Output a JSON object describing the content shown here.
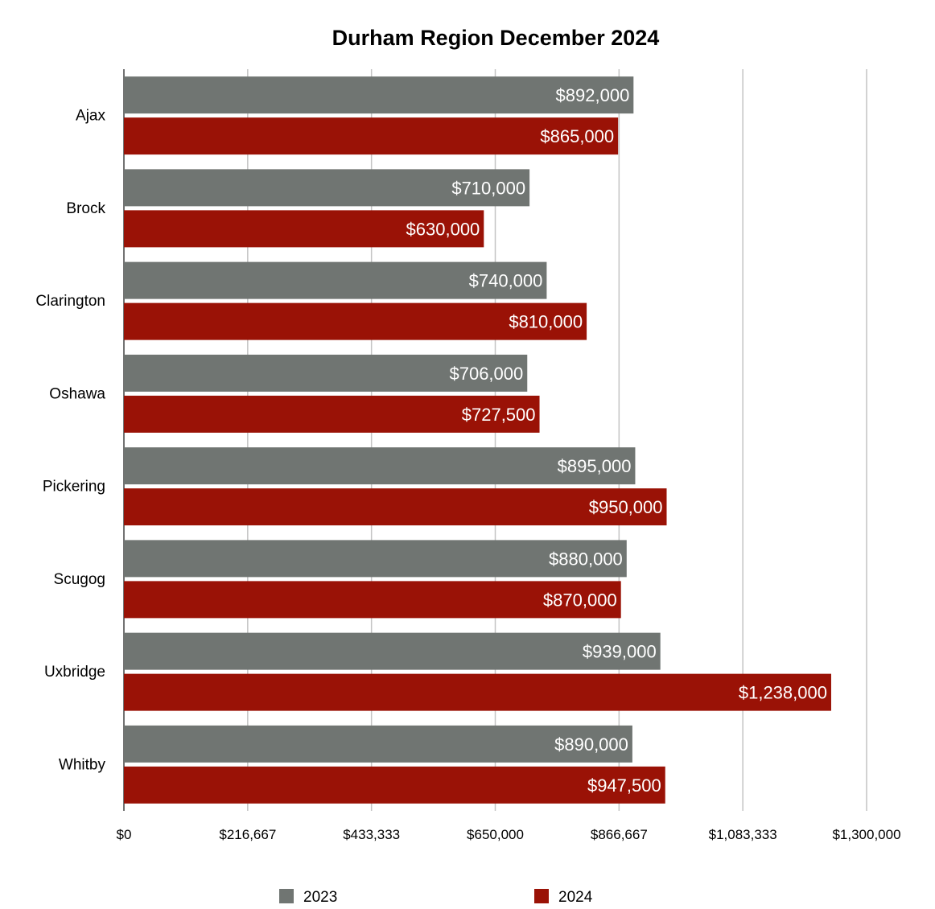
{
  "chart_data": {
    "type": "bar",
    "orientation": "horizontal",
    "title": "Durham Region December 2024",
    "xlabel": "",
    "ylabel": "",
    "categories": [
      "Ajax",
      "Brock",
      "Clarington",
      "Oshawa",
      "Pickering",
      "Scugog",
      "Uxbridge",
      "Whitby"
    ],
    "series": [
      {
        "name": "2023",
        "color": "#707572",
        "values": [
          892000,
          710000,
          740000,
          706000,
          895000,
          880000,
          939000,
          890000
        ],
        "labels": [
          "$892,000",
          "$710,000",
          "$740,000",
          "$706,000",
          "$895,000",
          "$880,000",
          "$939,000",
          "$890,000"
        ]
      },
      {
        "name": "2024",
        "color": "#9a1206",
        "values": [
          865000,
          630000,
          810000,
          727500,
          950000,
          870000,
          1238000,
          947500
        ],
        "labels": [
          "$865,000",
          "$630,000",
          "$810,000",
          "$727,500",
          "$950,000",
          "$870,000",
          "$1,238,000",
          "$947,500"
        ]
      }
    ],
    "xlim": [
      0,
      1300000
    ],
    "ticks": [
      0,
      216667,
      433333,
      650000,
      866667,
      1083333,
      1300000
    ],
    "tick_labels": [
      "$0",
      "$216,667",
      "$433,333",
      "$650,000",
      "$866,667",
      "$1,083,333",
      "$1,300,000"
    ],
    "grid": true,
    "legend_position": "bottom"
  }
}
